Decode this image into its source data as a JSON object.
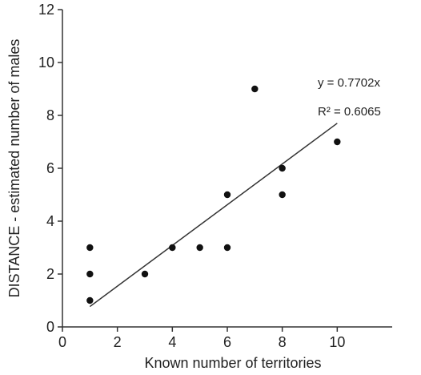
{
  "chart_data": {
    "type": "scatter",
    "title": "",
    "xlabel": "Known number of territories",
    "ylabel": "DISTANCE - estimated number of males",
    "xlim": [
      0,
      12
    ],
    "ylim": [
      0,
      12
    ],
    "x_ticks": [
      0,
      2,
      4,
      6,
      8,
      10
    ],
    "y_ticks": [
      0,
      2,
      4,
      6,
      8,
      10,
      12
    ],
    "grid": false,
    "legend": "none",
    "series": [
      {
        "points": [
          {
            "x": 1,
            "y": 3
          },
          {
            "x": 1,
            "y": 2
          },
          {
            "x": 1,
            "y": 1
          },
          {
            "x": 3,
            "y": 2
          },
          {
            "x": 4,
            "y": 3
          },
          {
            "x": 5,
            "y": 3
          },
          {
            "x": 6,
            "y": 5
          },
          {
            "x": 6,
            "y": 3
          },
          {
            "x": 7,
            "y": 9
          },
          {
            "x": 8,
            "y": 6
          },
          {
            "x": 8,
            "y": 5
          },
          {
            "x": 10,
            "y": 7
          }
        ],
        "color": "#111111"
      }
    ],
    "trendline": {
      "slope": 0.7702,
      "intercept": 0,
      "x_range": [
        1,
        10
      ],
      "color": "#333333"
    },
    "annotations": [
      {
        "text": "y = 0.7702x"
      },
      {
        "text": "R² = 0.6065"
      }
    ]
  }
}
